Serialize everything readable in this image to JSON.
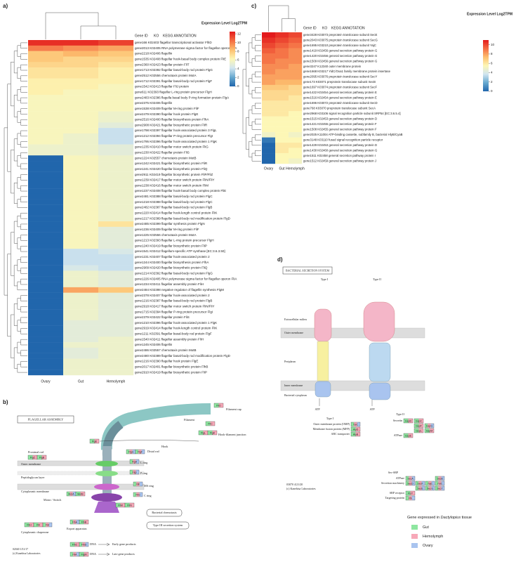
{
  "panel_labels": [
    "a)",
    "b)",
    "c)",
    "d)"
  ],
  "chart_data": [
    {
      "type": "heatmap",
      "header": [
        "Gene ID",
        "KO",
        "KEGG ANNOTATION"
      ],
      "colorbar_title": "Expression Level Log2TPM",
      "categories": [
        "Ovary",
        "Gut",
        "Hemolymph"
      ],
      "colorscale": [
        "#2166ac",
        "#67a9cf",
        "#d1e5f0",
        "#fdf7b6",
        "#fdbf6f",
        "#f46d43",
        "#e31a1c"
      ],
      "colorbar_lim": [
        0,
        12.5
      ],
      "colorbar_ticks": [
        0,
        2,
        4,
        6,
        8,
        10,
        12
      ],
      "rows": [
        "gene166 K02403 flagellar transcriptional activator FlhD",
        "gene2013 K02405 RNA polymerase sigma factor for flagellar operon FliA",
        "gene2218 K02406 flagellin",
        "gene1535 K02408 flagellar hook-basal body complex protein FliE",
        "gene2360 K02423 flagellar protein FliT",
        "gene1713 K02392 flagellar basal-body rod protein FlgG",
        "gene2512 K02556 chemotaxis protein MotA",
        "gene1712 K02391 flagellar basal-body rod protein FlgF",
        "gene1542 K02413 flagellar FliJ protein",
        "gene611 K02393 flagellar L-ring protein precursor FlgH",
        "gene2483 K02386 flagella basal body P-ring formation protein FlgA",
        "gene2375 K02406 flagellin",
        "gene1538 K02409 flagellar M-ring protein FliF",
        "gene2479 K02390 flagellar hook protein FlgE",
        "gene2516 K02400 flagellar biosynthesis protein FlhA",
        "gene2908 K02421 flagellar biosynthetic protein FliR",
        "gene1798 K02397 flagellar hook-associated protein 3 FlgL",
        "gene1212 K02394 flagellar P-ring protein precursor FlgI",
        "gene1795 K02396 flagellar hook-associated protein 1 FlgK",
        "gene1235 K02410 flagellar motor switch protein FliG",
        "gene1230 K02422 flagellar protein FliS",
        "gene1224 K02557 chemotaxis protein MotB",
        "gene1242 K02421 flagellar biosynthetic protein FliR",
        "gene1241 K02420 flagellar biosynthetic protein FliQ",
        "gene2911 K02419 flagellar biosynthetic protein FliP/FliZ",
        "gene1239 K02417 flagellar motor switch protein FliN/FliY",
        "gene1238 K02416 flagellar motor switch protein FliM",
        "gene1237 K02408 flagellar hook-basal body complex protein FliE",
        "gene2481 K02388 flagellar basal-body rod protein FlgC",
        "gene1218 K02388 flagellar basal-body rod protein FlgC",
        "gene2482 K02387 flagellar basal-body rod protein FlgB",
        "gene1220 K02414 flagellar hook-length control protein FliK",
        "gene1217 K02389 flagellar basal-body rod modification protein FlgD",
        "gene2485 K02399 flagellar synthesis protein FlgN",
        "gene1236 K02409 flagellar M-ring protein FliF",
        "gene1225 K02556 chemotaxis protein MotA",
        "gene1213 K02393 flagellar L-ring protein precursor FlgH",
        "gene1240 K02419 flagellar biosynthetic protein FliP",
        "gene1541 K02412 flagellum-specific ATP synthase [EC:3.6.3.50]",
        "gene1231 K02407 flagellar hook-associated protein 2",
        "gene1244 K02400 flagellar biosynthesis protein FlhA",
        "gene2909 K02420 flagellar biosynthetic protein FliQ",
        "gene1214 K02392 flagellar basal-body rod protein FlgG",
        "gene1226 K02405 RNA polymerase sigma factor for flagellar operon FliA",
        "gene1234 K02411 flagellar assembly protein FliH",
        "gene2484 K02398 negative regulator of flagellin synthesis FlgM",
        "gene2378 K02407 flagellar hook-associated protein 2",
        "gene1216 K02387 flagellar basal-body rod protein FlgB",
        "gene2918 K02417 flagellar motor switch protein FliN/FliY",
        "gene1715 K02394 flagellar P-ring protein precursor FlgI",
        "gene2379 K02422 flagellar protein FliS",
        "gene1210 K02396 flagellar hook-associated protein 1 FlgK",
        "gene2919 K02414 flagellar hook-length control protein FliK",
        "gene1211 K02391 flagellar basal-body rod protein FlgF",
        "gene1540 K02411 flagellar assembly protein FliH",
        "gene1245 K02406 flagellin",
        "gene2486 K02557 chemotaxis protein MotB",
        "gene2480 K02389 flagellar basal-body rod modification protein FlgD",
        "gene1216 K02390 flagellar hook protein FlgE",
        "gene2017 K02401 flagellar biosynthetic protein FlhB",
        "gene2910 K02419 flagellar biosynthetic protein FliP"
      ],
      "values": [
        [
          12,
          12,
          11.5
        ],
        [
          10,
          9.5,
          9
        ],
        [
          8,
          8.5,
          8
        ],
        [
          8,
          7.5,
          7.5
        ],
        [
          7.5,
          7.5,
          7
        ],
        [
          7,
          7,
          6.5
        ],
        [
          7,
          7,
          6.5
        ],
        [
          6.5,
          6.5,
          6.5
        ],
        [
          6.5,
          6.5,
          6
        ],
        [
          6.5,
          6,
          6
        ],
        [
          6,
          6,
          6
        ],
        [
          6,
          6,
          6
        ],
        [
          6,
          6,
          6
        ],
        [
          6,
          6,
          5.5
        ],
        [
          6,
          6,
          5.5
        ],
        [
          6,
          6,
          5
        ],
        [
          6,
          6,
          4
        ],
        [
          6,
          5.5,
          4
        ],
        [
          6,
          5.5,
          4
        ],
        [
          5.5,
          5.5,
          5
        ],
        [
          5.5,
          5.5,
          5
        ],
        [
          0,
          6,
          5.5
        ],
        [
          0,
          6,
          5.5
        ],
        [
          0,
          6,
          5.5
        ],
        [
          0,
          6,
          5.5
        ],
        [
          0,
          6,
          5.5
        ],
        [
          0,
          6,
          5.5
        ],
        [
          0,
          6,
          5.5
        ],
        [
          0,
          6,
          5.5
        ],
        [
          0,
          6,
          5.5
        ],
        [
          0,
          6,
          5.5
        ],
        [
          0,
          6,
          5.5
        ],
        [
          0,
          6,
          5.5
        ],
        [
          0,
          6,
          7
        ],
        [
          0,
          6,
          5
        ],
        [
          0,
          6,
          5
        ],
        [
          0,
          6,
          5
        ],
        [
          0,
          6,
          5
        ],
        [
          0,
          4,
          4.5
        ],
        [
          0,
          4,
          4
        ],
        [
          0,
          4,
          4
        ],
        [
          0,
          4.5,
          4
        ],
        [
          0,
          5.5,
          5
        ],
        [
          0,
          5.5,
          5
        ],
        [
          0,
          5.5,
          5
        ],
        [
          0,
          9,
          8
        ],
        [
          0,
          5.5,
          5
        ],
        [
          0,
          5.5,
          5
        ],
        [
          0,
          5.5,
          5
        ],
        [
          0,
          5.5,
          5
        ],
        [
          0,
          5.5,
          5
        ],
        [
          0,
          5,
          5
        ],
        [
          0,
          5,
          5
        ],
        [
          0,
          5,
          5
        ],
        [
          0,
          5,
          5.5
        ],
        [
          0,
          5.5,
          5.5
        ],
        [
          0,
          5,
          5.5
        ],
        [
          0,
          5,
          5.5
        ],
        [
          0,
          5.5,
          5.5
        ],
        [
          0,
          5.5,
          5.5
        ],
        [
          0,
          5.5,
          5.5
        ]
      ]
    },
    {
      "type": "heatmap",
      "header": [
        "Gene ID",
        "KO",
        "KEGG ANNOTATION"
      ],
      "colorbar_title": "Expression Level Log2TPM",
      "categories": [
        "Ovary",
        "Gut",
        "Hemolymph"
      ],
      "colorscale": [
        "#2166ac",
        "#67a9cf",
        "#d1e5f0",
        "#fdf7b6",
        "#fdbf6f",
        "#f46d43",
        "#e31a1c"
      ],
      "colorbar_lim": [
        0,
        11
      ],
      "colorbar_ticks": [
        0,
        2,
        4,
        6,
        8,
        10
      ],
      "rows": [
        "gene3428 K03073 preprotein translocase subunit SecE",
        "gene2043 K03075 preprotein translocase subunit SecG",
        "gene1695 K03210 preprotein translocase subunit YajC",
        "gene1419 K02456 general secretion pathway protein G",
        "gene1420 K02456 general secretion pathway protein G",
        "gene1509 K02456 general secretion pathway protein G",
        "gene3247 K12340 outer membrane protein",
        "gene1668 K03217 YidC/Oxa1 family membrane protein insertase",
        "gene2095 K03076 preprotein translocase subunit SecY",
        "gene173 K03071 preprotein translocase subunit SecB",
        "gene1697 K03074 preprotein translocase subunit SecF",
        "gene1422 K02454 general secretion pathway protein E",
        "gene1516 K02454 general secretion pathway protein E",
        "gene1696 K03072 preprotein translocase subunit SecD",
        "gene768 K03070 preprotein translocase subunit SecA",
        "gene2968 K03106 signal recognition particle subunit SRP54 [EC:3.6.5.4]",
        "gene1515 K02453 general secretion pathway protein D",
        "gene1421 K02455 general secretion pathway protein F",
        "gene1508 K02455 general secretion pathway protein F",
        "gene2025 K11004 ATP-binding cassette, subfamily B, bacterial HlyB/CyaB",
        "gene3148 K03110 fused signal recognition particle receptor",
        "gene1429 K02453 general secretion pathway protein D",
        "gene1430 K02460 general secretion pathway protein G",
        "gene1511 K02458 general secretion pathway protein I",
        "gene1512 K02459 general secretion pathway protein J"
      ],
      "values": [
        [
          11,
          10.5,
          10
        ],
        [
          10.5,
          10,
          9.5
        ],
        [
          10,
          9.5,
          9
        ],
        [
          9.5,
          9,
          8.5
        ],
        [
          9,
          9,
          8.5
        ],
        [
          9,
          8.5,
          8.5
        ],
        [
          8.5,
          8.5,
          8
        ],
        [
          8.5,
          8,
          8
        ],
        [
          8,
          8,
          8
        ],
        [
          8,
          7.5,
          7.5
        ],
        [
          7,
          7,
          6.5
        ],
        [
          6.5,
          6.5,
          6.5
        ],
        [
          6.5,
          6.5,
          6
        ],
        [
          6,
          6,
          6
        ],
        [
          6,
          6,
          6
        ],
        [
          6,
          6,
          5.5
        ],
        [
          5.5,
          5.5,
          5.5
        ],
        [
          5.5,
          5.5,
          5.5
        ],
        [
          5.5,
          5.5,
          5.5
        ],
        [
          5,
          5.5,
          5
        ],
        [
          0.5,
          5.5,
          5.5
        ],
        [
          0,
          6,
          6
        ],
        [
          0,
          6,
          5.5
        ],
        [
          0,
          5.5,
          5.5
        ],
        [
          0,
          5.5,
          5
        ]
      ]
    }
  ],
  "flagellar_diagram": {
    "title": "FLAGELLAR ASSEMBLY",
    "labels": [
      "Filament cap",
      "Filament",
      "Hook-filament junction",
      "Hook",
      "Proximal rod",
      "Distal rod",
      "L ring",
      "P ring",
      "MS ring",
      "C ring",
      "Outer membrane",
      "Peptidoglycan layer",
      "Cytoplasmic membrane",
      "Motor / Switch",
      "Export apparatus",
      "Bacterial chemotaxis",
      "Type III secretion system",
      "Cytoplasmic chaperone",
      "DNA",
      "Early gene products",
      "DNA",
      "Late gene products"
    ],
    "genes": [
      {
        "label": "FliD",
        "tissues": [
          "Gut",
          "Hemolymph"
        ]
      },
      {
        "label": "FliC",
        "tissues": [
          "Gut",
          "Hemolymph"
        ]
      },
      {
        "label": "FlgL",
        "tissues": [
          "Gut",
          "Hemolymph"
        ]
      },
      {
        "label": "FlgK",
        "tissues": [
          "Gut",
          "Hemolymph"
        ]
      },
      {
        "label": "FlgE",
        "tissues": [
          "Gut",
          "Hemolymph"
        ]
      },
      {
        "label": "FlgG",
        "tissues": [
          "Gut",
          "Hemolymph",
          "Ovary"
        ]
      },
      {
        "label": "FlgF",
        "tissues": [
          "Gut",
          "Hemolymph",
          "Ovary"
        ]
      },
      {
        "label": "FlgC",
        "tissues": [
          "Gut",
          "Hemolymph"
        ]
      },
      {
        "label": "FlgB",
        "tissues": [
          "Gut",
          "Hemolymph"
        ]
      },
      {
        "label": "FlgH",
        "tissues": [
          "Gut",
          "Hemolymph",
          "Ovary"
        ]
      },
      {
        "label": "FlgI",
        "tissues": [
          "Gut",
          "Hemolymph",
          "Ovary"
        ]
      },
      {
        "label": "FliF",
        "tissues": [
          "Gut",
          "Hemolymph",
          "Ovary"
        ]
      },
      {
        "label": "FliG",
        "tissues": [
          "Gut",
          "Hemolymph",
          "Ovary"
        ]
      },
      {
        "label": "FliM",
        "tissues": [
          "Gut",
          "Hemolymph"
        ]
      },
      {
        "label": "FliN",
        "tissues": [
          "Gut",
          "Hemolymph"
        ]
      },
      {
        "label": "MotA",
        "tissues": [
          "Gut",
          "Hemolymph",
          "Ovary"
        ]
      },
      {
        "label": "MotB",
        "tissues": [
          "Gut",
          "Hemolymph"
        ]
      },
      {
        "label": "FlhA",
        "tissues": [
          "Gut",
          "Hemolymph",
          "Ovary"
        ]
      },
      {
        "label": "FlhB",
        "tissues": [
          "Gut",
          "Hemolymph"
        ]
      },
      {
        "label": "FliH",
        "tissues": [
          "Gut",
          "Hemolymph"
        ]
      },
      {
        "label": "FliI",
        "tissues": [
          "Gut",
          "Hemolymph"
        ]
      },
      {
        "label": "FliJ",
        "tissues": [
          "Gut",
          "Hemolymph",
          "Ovary"
        ]
      },
      {
        "label": "FlhC",
        "tissues": [
          "Gut",
          "Hemolymph"
        ]
      },
      {
        "label": "FlhD",
        "tissues": [
          "Gut",
          "Hemolymph",
          "Ovary"
        ]
      },
      {
        "label": "FliA",
        "tissues": [
          "Gut",
          "Hemolymph",
          "Ovary"
        ]
      },
      {
        "label": "FlgM",
        "tissues": [
          "Gut",
          "Hemolymph"
        ]
      }
    ],
    "footer": [
      "02040 1/31/17",
      "(c) Kanehisa Laboratories"
    ]
  },
  "secretion_diagram": {
    "title": "BACTERIAL SECRETION SYSTEM",
    "labels": [
      "Type I",
      "Type II",
      "Extracellular milieu",
      "Outer membrane",
      "Periplasm",
      "Inner membrane",
      "Bacterial cytoplasm",
      "ATP",
      "ATP",
      "Type I",
      "Outer membrane protein (OMP)",
      "Membrane fusion protein (MFP)",
      "ABC transporter",
      "Type II",
      "Secretin",
      "ATPase",
      "Sec-SRP",
      "ATPase",
      "Secretion machinery",
      "SRP receptor",
      "Targeting protein",
      "03070 4/21/20",
      "(c) Kanehisa Laboratories"
    ],
    "genes": [
      {
        "label": "TolC",
        "tissues": [
          "Gut",
          "Hemolymph",
          "Ovary"
        ]
      },
      {
        "label": "HlyD",
        "tissues": [
          "Gut",
          "Hemolymph"
        ]
      },
      {
        "label": "HlyB",
        "tissues": [
          "Gut",
          "Hemolymph"
        ]
      },
      {
        "label": "GspD",
        "tissues": [
          "Gut",
          "Hemolymph"
        ]
      },
      {
        "label": "GspC",
        "tissues": [
          "Gut",
          "Hemolymph"
        ]
      },
      {
        "label": "GspE",
        "tissues": [
          "Gut",
          "Hemolymph"
        ]
      },
      {
        "label": "GspF",
        "tissues": [
          "Gut",
          "Hemolymph"
        ]
      },
      {
        "label": "GspG",
        "tissues": [
          "Gut",
          "Hemolymph",
          "Ovary"
        ]
      },
      {
        "label": "GspL",
        "tissues": [
          "Gut",
          "Hemolymph"
        ]
      },
      {
        "label": "GspM",
        "tissues": [
          "Gut",
          "Hemolymph"
        ]
      },
      {
        "label": "SecA",
        "tissues": [
          "Gut",
          "Hemolymph",
          "Ovary"
        ]
      },
      {
        "label": "SecD",
        "tissues": [
          "Gut",
          "Hemolymph",
          "Ovary"
        ]
      },
      {
        "label": "SecF",
        "tissues": [
          "Gut",
          "Hemolymph",
          "Ovary"
        ]
      },
      {
        "label": "YajC",
        "tissues": [
          "Gut",
          "Hemolymph",
          "Ovary"
        ]
      },
      {
        "label": "SecE",
        "tissues": [
          "Gut",
          "Hemolymph",
          "Ovary"
        ]
      },
      {
        "label": "SecG",
        "tissues": [
          "Gut",
          "Hemolymph",
          "Ovary"
        ]
      },
      {
        "label": "SecY",
        "tissues": [
          "Gut",
          "Hemolymph",
          "Ovary"
        ]
      },
      {
        "label": "SecB",
        "tissues": [
          "Gut",
          "Hemolymph",
          "Ovary"
        ]
      },
      {
        "label": "YidC",
        "tissues": [
          "Gut",
          "Hemolymph",
          "Ovary"
        ]
      },
      {
        "label": "Ffh",
        "tissues": [
          "Gut",
          "Hemolymph",
          "Ovary"
        ]
      },
      {
        "label": "FtsY",
        "tissues": [
          "Gut",
          "Hemolymph"
        ]
      }
    ],
    "legend_title": [
      "Gene expressed in",
      "Dactylopius",
      "tissue"
    ],
    "legend": [
      {
        "name": "Gut",
        "color": "#8ee6a0"
      },
      {
        "name": "Hemolymph",
        "color": "#f7a8b8"
      },
      {
        "name": "Ovary",
        "color": "#a9c4ef"
      }
    ]
  }
}
